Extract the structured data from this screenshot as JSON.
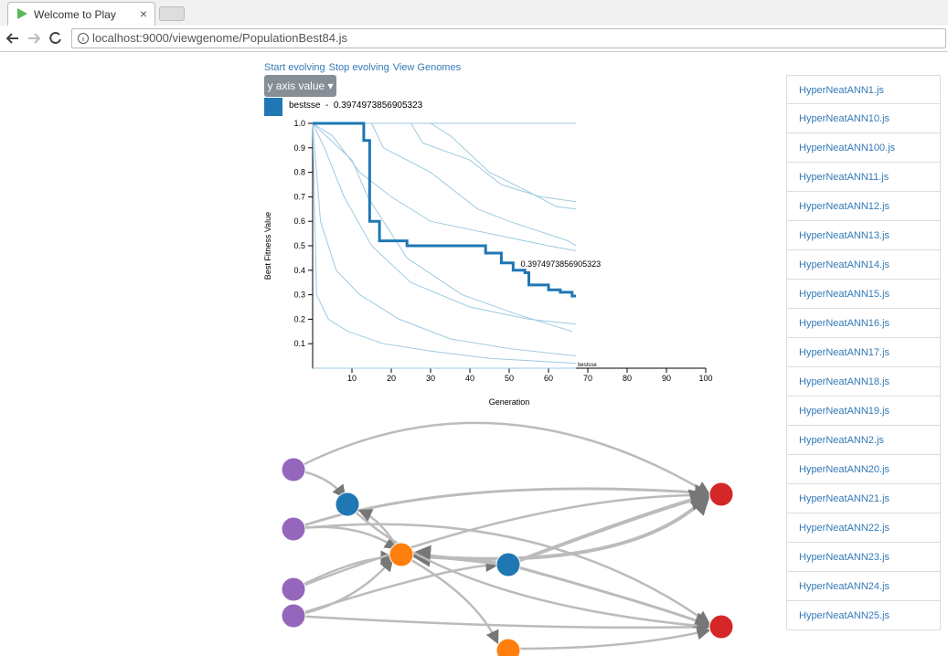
{
  "browser": {
    "tab_title": "Welcome to Play",
    "url": "localhost:9000/viewgenome/PopulationBest84.js"
  },
  "page": {
    "links": [
      "Start evolving",
      "Stop evolving",
      "View Genomes"
    ],
    "button": "y axis value",
    "legend_text": "bestsse  -  0.3974973856905323"
  },
  "chart_data": {
    "type": "line",
    "x_label": "Generation",
    "y_label": "Best Fitness Value",
    "xlim": [
      0,
      100
    ],
    "ylim": [
      0,
      1
    ],
    "xticks": [
      10,
      20,
      30,
      40,
      50,
      60,
      70,
      80,
      90,
      100
    ],
    "yticks": [
      0.1,
      0.2,
      0.3,
      0.4,
      0.5,
      0.6,
      0.7,
      0.8,
      0.9,
      {
        "value": 1,
        "label": "1.0"
      }
    ],
    "annotation": {
      "text": "0.3974973856905323",
      "x": 52,
      "y": 0.4
    },
    "series": [
      {
        "name": "bestsse",
        "color": "#1f77b4",
        "x": [
          0,
          13,
          13,
          14.5,
          14.5,
          17,
          17,
          24,
          24,
          44,
          44,
          48,
          48,
          51,
          51,
          54,
          54,
          55,
          55,
          60,
          60,
          63,
          63,
          66,
          66,
          67
        ],
        "values": [
          1,
          1,
          0.93,
          0.93,
          0.6,
          0.6,
          0.52,
          0.52,
          0.5,
          0.5,
          0.47,
          0.47,
          0.43,
          0.43,
          0.4,
          0.4,
          0.39,
          0.39,
          0.34,
          0.34,
          0.32,
          0.32,
          0.31,
          0.31,
          0.295,
          0.295
        ]
      }
    ],
    "background_color": "#9ecae1",
    "background_lines": [
      {
        "x": [
          0,
          5,
          12,
          20,
          30,
          45,
          60,
          67
        ],
        "values": [
          1,
          0.95,
          0.8,
          0.7,
          0.6,
          0.55,
          0.5,
          0.48
        ]
      },
      {
        "x": [
          0,
          3,
          8,
          15,
          25,
          40,
          55,
          67
        ],
        "values": [
          1,
          0.9,
          0.7,
          0.5,
          0.35,
          0.25,
          0.2,
          0.18
        ]
      },
      {
        "x": [
          0,
          15,
          18,
          30,
          42,
          50,
          65,
          67
        ],
        "values": [
          1,
          1,
          0.9,
          0.8,
          0.65,
          0.6,
          0.52,
          0.5
        ]
      },
      {
        "x": [
          0,
          2,
          6,
          12,
          22,
          35,
          50,
          67
        ],
        "values": [
          1,
          0.6,
          0.4,
          0.3,
          0.2,
          0.12,
          0.08,
          0.05
        ]
      },
      {
        "x": [
          0,
          25,
          28,
          40,
          48,
          58,
          67
        ],
        "values": [
          1,
          1,
          0.92,
          0.85,
          0.75,
          0.7,
          0.68
        ]
      },
      {
        "x": [
          0,
          10,
          14,
          24,
          38,
          52,
          66
        ],
        "values": [
          1,
          0.85,
          0.7,
          0.45,
          0.3,
          0.22,
          0.15
        ]
      },
      {
        "x": [
          0,
          1,
          4,
          9,
          18,
          30,
          45,
          67
        ],
        "values": [
          1,
          0.3,
          0.2,
          0.15,
          0.1,
          0.07,
          0.04,
          0.02
        ]
      },
      {
        "x": [
          0,
          30,
          35,
          45,
          55,
          62,
          67
        ],
        "values": [
          1,
          1,
          0.95,
          0.8,
          0.72,
          0.66,
          0.65
        ]
      },
      {
        "x": [
          0,
          67
        ],
        "values": [
          1,
          1
        ]
      },
      {
        "x": [
          0,
          67
        ],
        "values": [
          0,
          0
        ]
      }
    ]
  },
  "sidebar": {
    "items": [
      "HyperNeatANN1.js",
      "HyperNeatANN10.js",
      "HyperNeatANN100.js",
      "HyperNeatANN11.js",
      "HyperNeatANN12.js",
      "HyperNeatANN13.js",
      "HyperNeatANN14.js",
      "HyperNeatANN15.js",
      "HyperNeatANN16.js",
      "HyperNeatANN17.js",
      "HyperNeatANN18.js",
      "HyperNeatANN19.js",
      "HyperNeatANN2.js",
      "HyperNeatANN20.js",
      "HyperNeatANN21.js",
      "HyperNeatANN22.js",
      "HyperNeatANN23.js",
      "HyperNeatANN24.js",
      "HyperNeatANN25.js"
    ]
  }
}
